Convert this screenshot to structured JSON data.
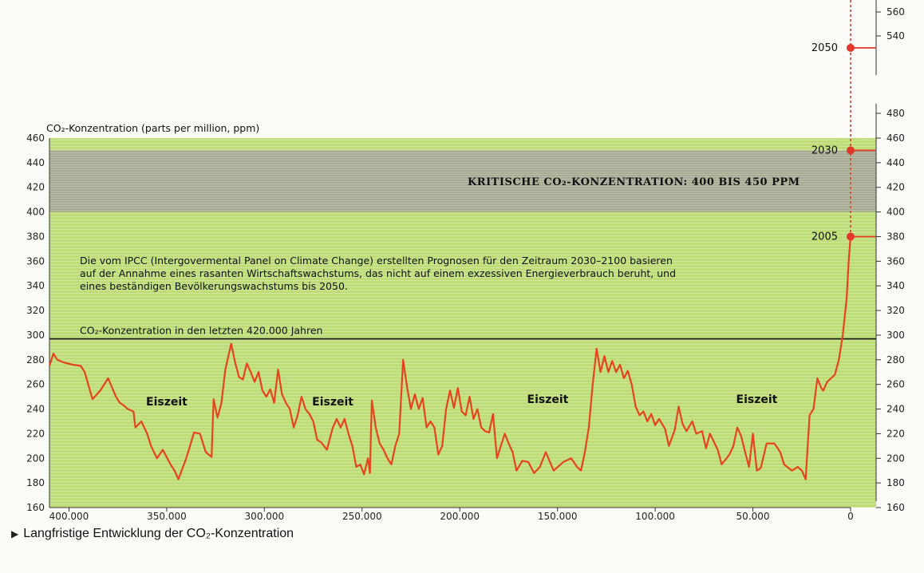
{
  "chart_data": {
    "type": "line",
    "ylabel": "CO₂-Konzentration (parts per million, ppm)",
    "ylim": [
      160,
      460
    ],
    "xlim": [
      410000,
      0
    ],
    "x_ticks": [
      400000,
      350000,
      300000,
      250000,
      200000,
      150000,
      100000,
      50000,
      0
    ],
    "x_tick_labels": [
      "400.000",
      "350.000",
      "300.000",
      "250.000",
      "200.000",
      "150.000",
      "100.000",
      "50.000",
      "0"
    ],
    "y_ticks": [
      160,
      180,
      200,
      220,
      240,
      260,
      280,
      300,
      320,
      340,
      360,
      380,
      400,
      420,
      440,
      460
    ],
    "right_axis": {
      "ticks": [
        160,
        180,
        200,
        220,
        240,
        260,
        280,
        300,
        320,
        340,
        360,
        380,
        400,
        420,
        440,
        460,
        480,
        540,
        560
      ]
    },
    "critical_band": {
      "from": 400,
      "to": 450,
      "label": "KRITISCHE CO₂-KONZENTRATION: 400 BIS 450 PPM"
    },
    "reference_line": {
      "value": 297,
      "label": "CO₂-Konzentration in den letzten 420.000 Jahren"
    },
    "annotation_lines": [
      "Die vom IPCC (Intergovermental Panel on Climate Change) erstellten Prognosen für den Zeitraum 2030–2100 basieren",
      "auf der Annahme eines rasanten Wirtschaftswachstums, das nicht auf einem exzessiven Energieverbrauch beruht, und",
      "eines beständigen Bevölkerungswachstums bis 2050."
    ],
    "periods": [
      {
        "label": "Eiszeit",
        "x": 350000,
        "y": 243
      },
      {
        "label": "Eiszeit",
        "x": 265000,
        "y": 243
      },
      {
        "label": "Eiszeit",
        "x": 155000,
        "y": 245
      },
      {
        "label": "Eiszeit",
        "x": 48000,
        "y": 245
      }
    ],
    "projections": [
      {
        "label": "2005",
        "value": 380
      },
      {
        "label": "2030",
        "value": 450
      },
      {
        "label": "2050",
        "value": 530
      }
    ],
    "series": [
      {
        "values": [
          [
            410000,
            275
          ],
          [
            408000,
            285
          ],
          [
            406000,
            280
          ],
          [
            403000,
            278
          ],
          [
            398000,
            276
          ],
          [
            394000,
            275
          ],
          [
            392000,
            270
          ],
          [
            388000,
            248
          ],
          [
            384000,
            255
          ],
          [
            380000,
            265
          ],
          [
            376000,
            250
          ],
          [
            374000,
            245
          ],
          [
            372000,
            243
          ],
          [
            370000,
            240
          ],
          [
            367000,
            238
          ],
          [
            366000,
            225
          ],
          [
            363000,
            230
          ],
          [
            360000,
            220
          ],
          [
            358000,
            210
          ],
          [
            355000,
            200
          ],
          [
            352000,
            207
          ],
          [
            348000,
            195
          ],
          [
            346000,
            190
          ],
          [
            344000,
            183
          ],
          [
            340000,
            200
          ],
          [
            336000,
            221
          ],
          [
            333000,
            220
          ],
          [
            330000,
            205
          ],
          [
            327000,
            201
          ],
          [
            326000,
            248
          ],
          [
            324000,
            233
          ],
          [
            322000,
            245
          ],
          [
            320000,
            272
          ],
          [
            317000,
            293
          ],
          [
            315000,
            278
          ],
          [
            313000,
            266
          ],
          [
            311000,
            264
          ],
          [
            309000,
            277
          ],
          [
            307000,
            270
          ],
          [
            305000,
            262
          ],
          [
            303000,
            270
          ],
          [
            301000,
            255
          ],
          [
            299000,
            250
          ],
          [
            297000,
            256
          ],
          [
            295000,
            245
          ],
          [
            293000,
            272
          ],
          [
            291000,
            252
          ],
          [
            289000,
            245
          ],
          [
            287000,
            240
          ],
          [
            285000,
            225
          ],
          [
            283000,
            235
          ],
          [
            281000,
            250
          ],
          [
            279000,
            240
          ],
          [
            277000,
            236
          ],
          [
            275000,
            230
          ],
          [
            273000,
            215
          ],
          [
            271000,
            213
          ],
          [
            268000,
            207
          ],
          [
            265000,
            225
          ],
          [
            263000,
            232
          ],
          [
            261000,
            225
          ],
          [
            259000,
            232
          ],
          [
            257000,
            220
          ],
          [
            255000,
            210
          ],
          [
            253000,
            193
          ],
          [
            251000,
            195
          ],
          [
            249000,
            187
          ],
          [
            247000,
            200
          ],
          [
            246000,
            188
          ],
          [
            245000,
            247
          ],
          [
            243000,
            225
          ],
          [
            241000,
            212
          ],
          [
            239000,
            207
          ],
          [
            237000,
            200
          ],
          [
            235000,
            195
          ],
          [
            233000,
            210
          ],
          [
            231000,
            220
          ],
          [
            229000,
            280
          ],
          [
            227000,
            258
          ],
          [
            225000,
            240
          ],
          [
            223000,
            252
          ],
          [
            221000,
            240
          ],
          [
            219000,
            249
          ],
          [
            217000,
            225
          ],
          [
            215000,
            230
          ],
          [
            213000,
            225
          ],
          [
            211000,
            203
          ],
          [
            209000,
            210
          ],
          [
            207000,
            240
          ],
          [
            205000,
            255
          ],
          [
            203000,
            241
          ],
          [
            201000,
            257
          ],
          [
            199000,
            238
          ],
          [
            197000,
            235
          ],
          [
            195000,
            250
          ],
          [
            193000,
            232
          ],
          [
            191000,
            240
          ],
          [
            189000,
            225
          ],
          [
            187000,
            222
          ],
          [
            185000,
            221
          ],
          [
            183000,
            236
          ],
          [
            181000,
            200
          ],
          [
            179000,
            210
          ],
          [
            177000,
            220
          ],
          [
            175000,
            212
          ],
          [
            173000,
            205
          ],
          [
            171000,
            190
          ],
          [
            168000,
            198
          ],
          [
            165000,
            197
          ],
          [
            162000,
            188
          ],
          [
            159000,
            193
          ],
          [
            156000,
            205
          ],
          [
            152000,
            190
          ],
          [
            147000,
            197
          ],
          [
            143000,
            200
          ],
          [
            140000,
            193
          ],
          [
            138000,
            190
          ],
          [
            136000,
            205
          ],
          [
            134000,
            225
          ],
          [
            132000,
            260
          ],
          [
            130000,
            289
          ],
          [
            128000,
            270
          ],
          [
            126000,
            283
          ],
          [
            124000,
            270
          ],
          [
            122000,
            279
          ],
          [
            120000,
            270
          ],
          [
            118000,
            276
          ],
          [
            116000,
            265
          ],
          [
            114000,
            271
          ],
          [
            112000,
            260
          ],
          [
            110000,
            242
          ],
          [
            108000,
            235
          ],
          [
            106000,
            238
          ],
          [
            104000,
            230
          ],
          [
            102000,
            236
          ],
          [
            100000,
            227
          ],
          [
            98000,
            232
          ],
          [
            95000,
            224
          ],
          [
            93000,
            210
          ],
          [
            90000,
            223
          ],
          [
            88000,
            242
          ],
          [
            86000,
            228
          ],
          [
            84000,
            222
          ],
          [
            81000,
            230
          ],
          [
            79000,
            220
          ],
          [
            76000,
            222
          ],
          [
            74000,
            208
          ],
          [
            72000,
            220
          ],
          [
            68000,
            207
          ],
          [
            66000,
            195
          ],
          [
            62000,
            203
          ],
          [
            60000,
            210
          ],
          [
            58000,
            225
          ],
          [
            56000,
            218
          ],
          [
            54000,
            205
          ],
          [
            52000,
            193
          ],
          [
            50000,
            220
          ],
          [
            48000,
            190
          ],
          [
            46000,
            192
          ],
          [
            43000,
            212
          ],
          [
            39000,
            212
          ],
          [
            36000,
            205
          ],
          [
            34000,
            195
          ],
          [
            30000,
            190
          ],
          [
            27000,
            193
          ],
          [
            25000,
            190
          ],
          [
            23000,
            183
          ],
          [
            21000,
            235
          ],
          [
            19000,
            240
          ],
          [
            17000,
            265
          ],
          [
            15000,
            257
          ],
          [
            14000,
            255
          ],
          [
            12000,
            262
          ],
          [
            10000,
            265
          ],
          [
            8000,
            268
          ],
          [
            6000,
            280
          ],
          [
            4000,
            300
          ],
          [
            2000,
            330
          ],
          [
            1000,
            360
          ],
          [
            0,
            380
          ]
        ]
      }
    ]
  },
  "caption": {
    "arrow": "▶",
    "text": "Langfristige Entwicklung der CO₂-Konzentration"
  },
  "colors": {
    "plot_green": "#bedc78",
    "critical_band": "#a9ad96",
    "line": "#e8431e",
    "point": "#e2382a",
    "text": "#111111"
  }
}
